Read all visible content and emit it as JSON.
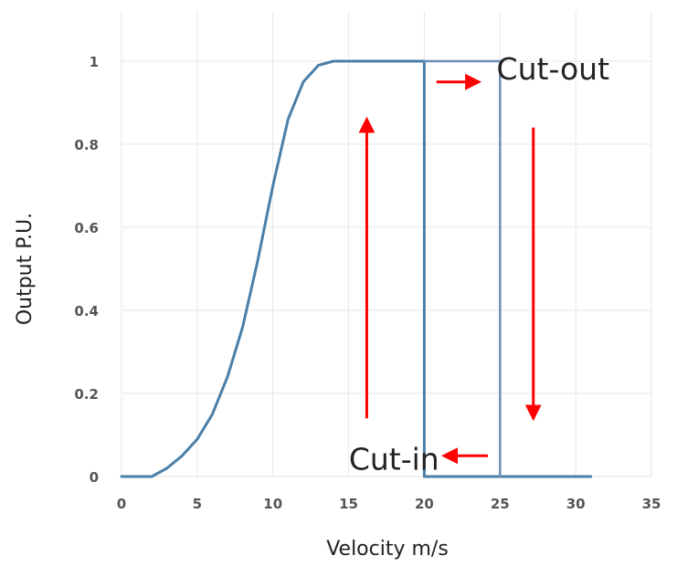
{
  "chart_data": {
    "type": "line",
    "title": "",
    "xlabel": "Velocity m/s",
    "ylabel": "Output P.U.",
    "xlim": [
      0,
      35
    ],
    "ylim": [
      0,
      1
    ],
    "x_ticks": [
      "0",
      "5",
      "10",
      "15",
      "20",
      "25",
      "30",
      "35"
    ],
    "y_ticks": [
      "0",
      "0.2",
      "0.4",
      "0.6",
      "0.8",
      "1"
    ],
    "grid": true,
    "legend": "none",
    "series": [
      {
        "color": "#4a7fa8",
        "points": [
          [
            0,
            0
          ],
          [
            2,
            0
          ],
          [
            3,
            0.02
          ],
          [
            4,
            0.05
          ],
          [
            5,
            0.09
          ],
          [
            6,
            0.15
          ],
          [
            7,
            0.24
          ],
          [
            8,
            0.36
          ],
          [
            9,
            0.52
          ],
          [
            10,
            0.7
          ],
          [
            11,
            0.86
          ],
          [
            12,
            0.95
          ],
          [
            13,
            0.99
          ],
          [
            14,
            1.0
          ],
          [
            15,
            1.0
          ],
          [
            20,
            1.0
          ],
          [
            20,
            0
          ],
          [
            25,
            0
          ],
          [
            31,
            0
          ]
        ]
      },
      {
        "color": "#6e8fb8",
        "points": [
          [
            20,
            1.0
          ],
          [
            25,
            1.0
          ],
          [
            25,
            0
          ]
        ]
      }
    ],
    "annotations": [
      {
        "text": "Cut-out",
        "x": 28.5,
        "y": 1.0
      },
      {
        "text": "Cut-in",
        "x": 18,
        "y": 0.06
      }
    ],
    "arrows": [
      {
        "color": "#ff0000",
        "from": [
          16.2,
          0.14
        ],
        "to": [
          16.2,
          0.86
        ]
      },
      {
        "color": "#ff0000",
        "from": [
          20.8,
          0.95
        ],
        "to": [
          23.6,
          0.95
        ]
      },
      {
        "color": "#ff0000",
        "from": [
          27.2,
          0.84
        ],
        "to": [
          27.2,
          0.14
        ]
      },
      {
        "color": "#ff0000",
        "from": [
          24.2,
          0.05
        ],
        "to": [
          21.3,
          0.05
        ]
      }
    ]
  }
}
